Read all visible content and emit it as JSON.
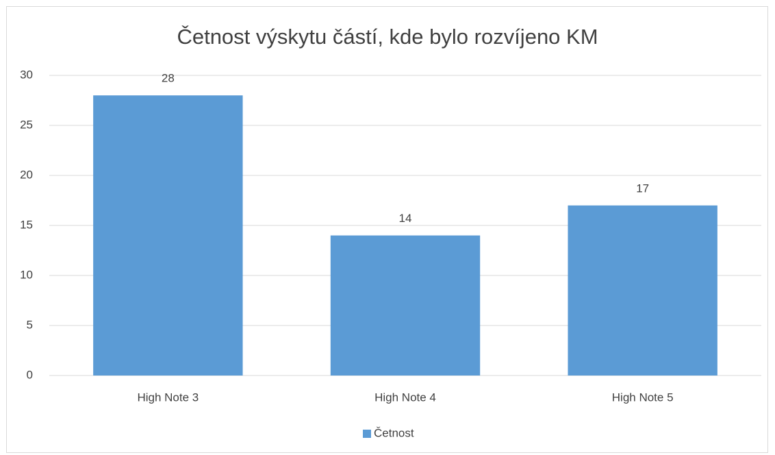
{
  "chart_data": {
    "type": "bar",
    "title": "Četnost výskytu částí, kde bylo rozvíjeno KM",
    "categories": [
      "High Note 3",
      "High Note 4",
      "High Note 5"
    ],
    "series": [
      {
        "name": "Četnost",
        "color": "#5b9bd5",
        "values": [
          28,
          14,
          17
        ]
      }
    ],
    "ylim": [
      0,
      30
    ],
    "yticks": [
      0,
      5,
      10,
      15,
      20,
      25,
      30
    ],
    "grid": true,
    "legend": "bottom"
  }
}
